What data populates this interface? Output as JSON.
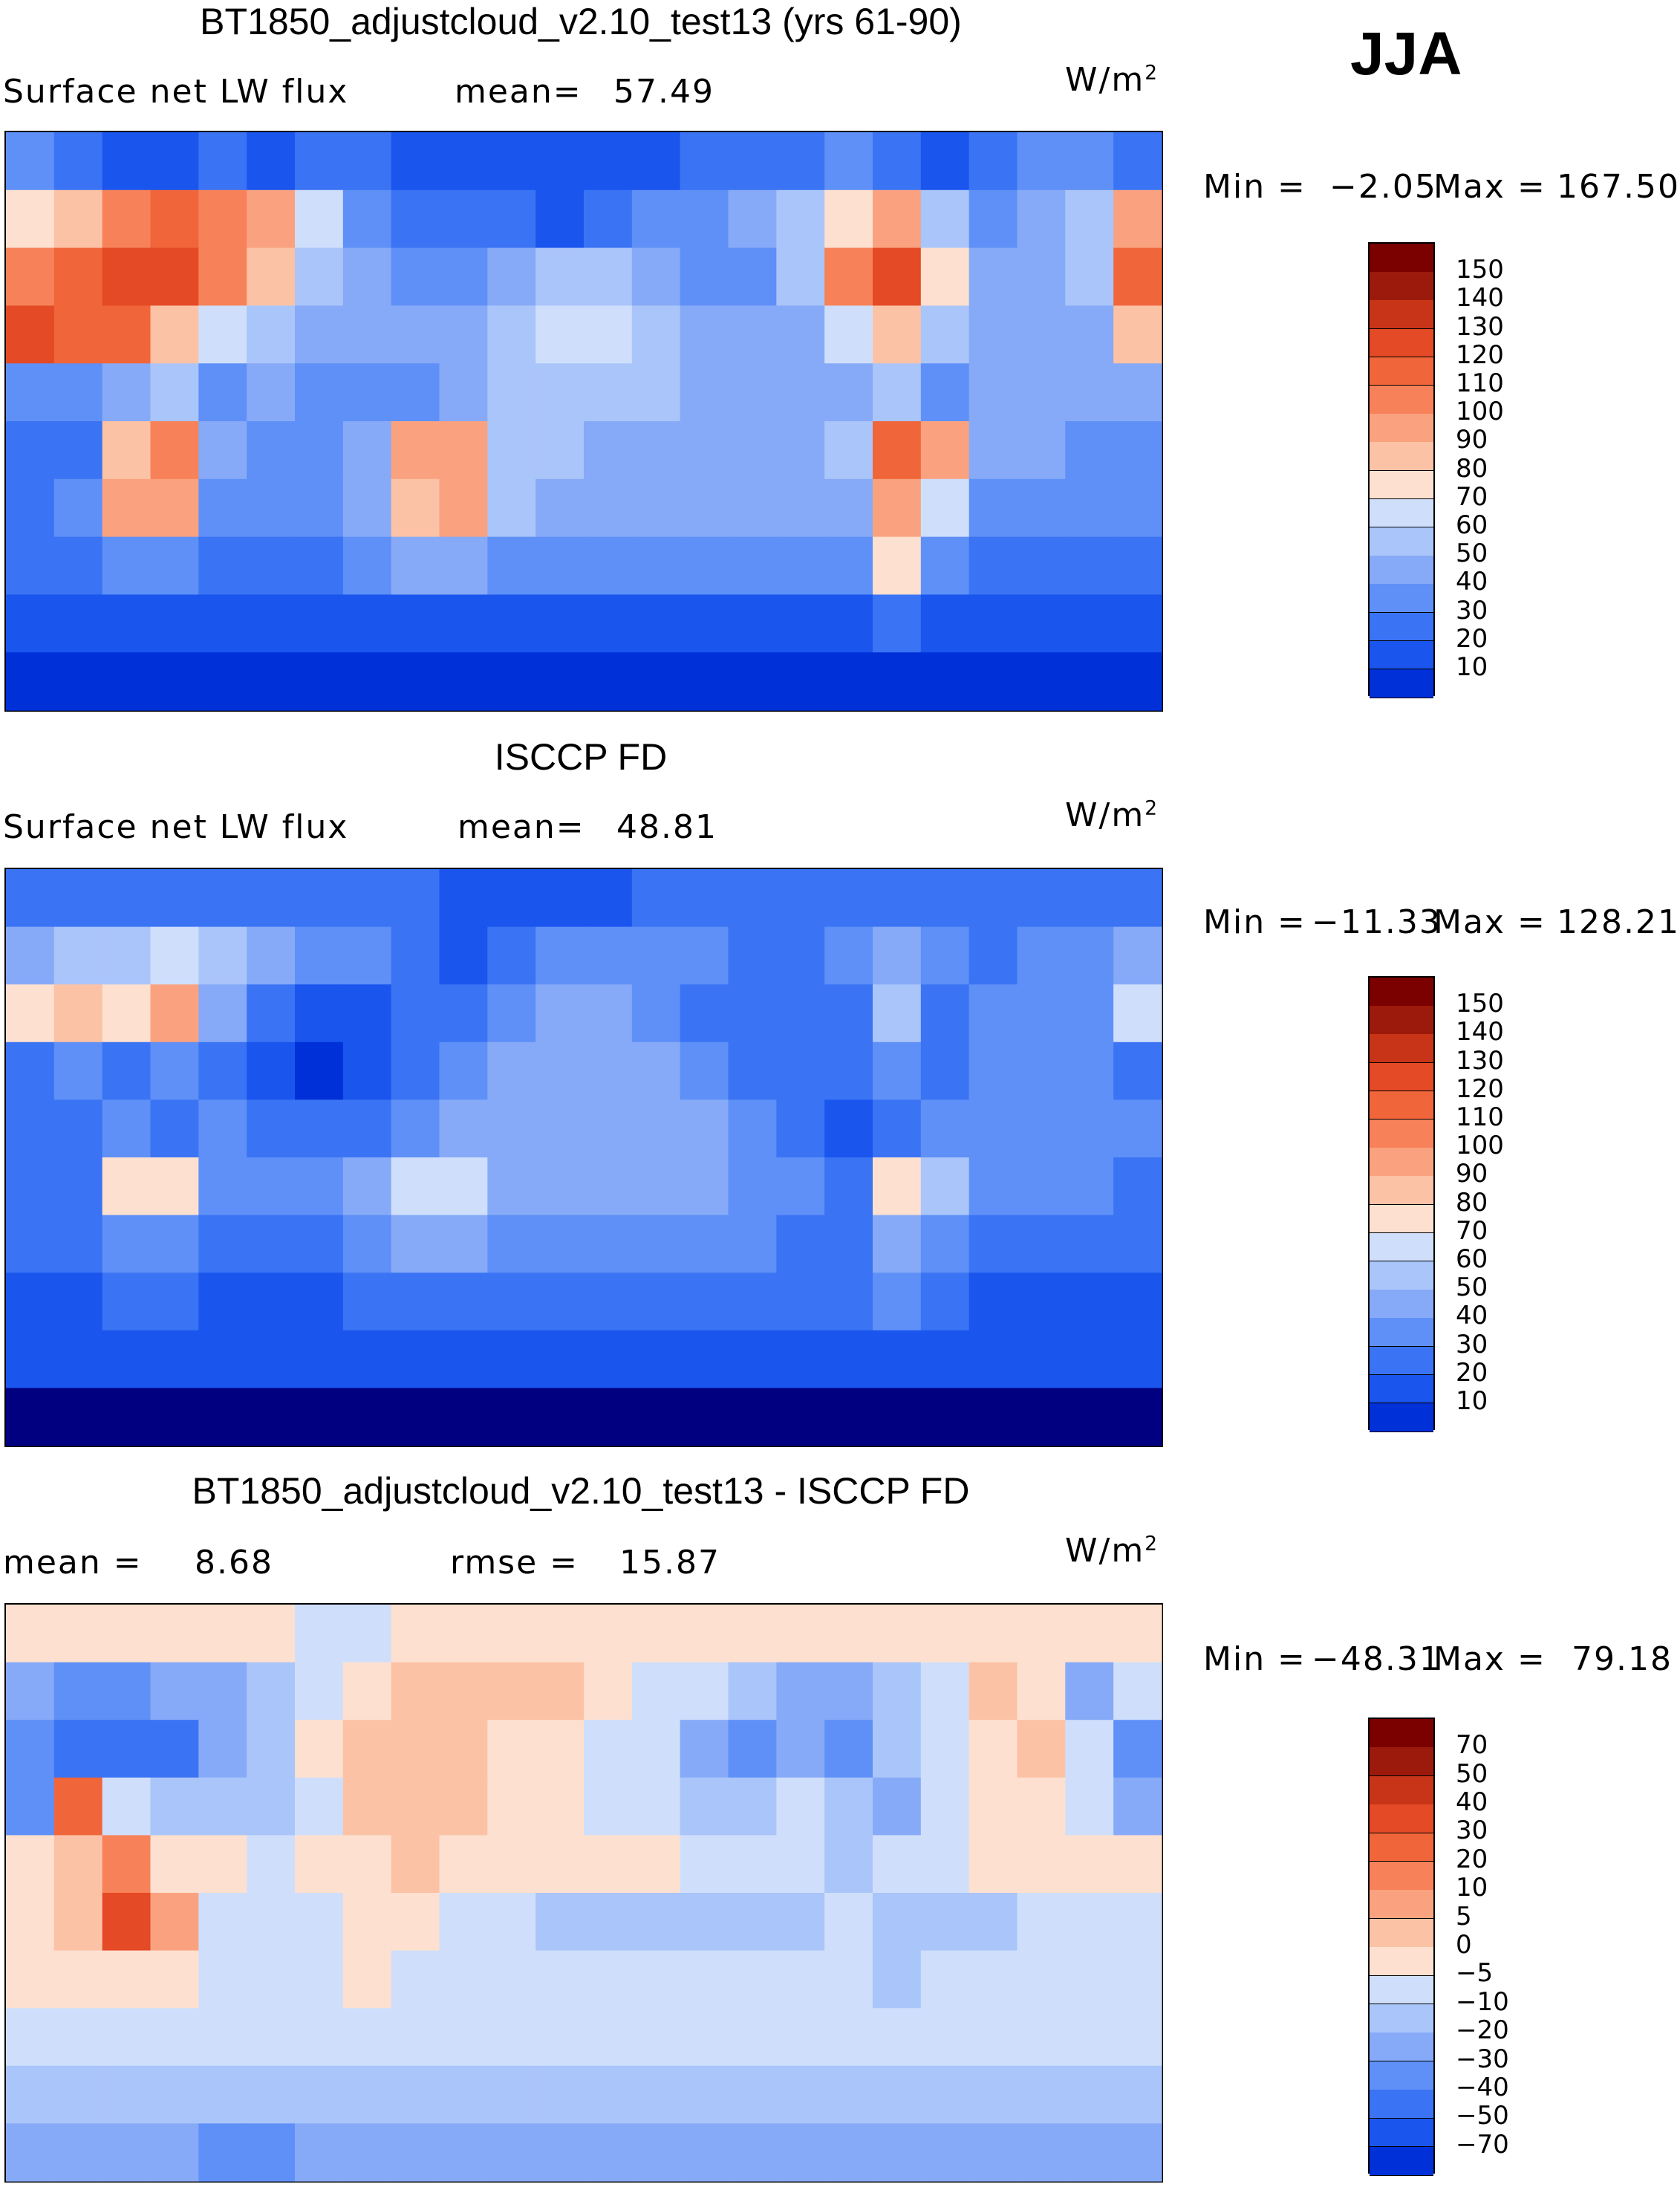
{
  "season": "JJA",
  "units": {
    "base": "W/m",
    "exp": "2"
  },
  "colors": {
    "blue_scale": [
      "#000080",
      "#0015b0",
      "#0030d8",
      "#1a55ee",
      "#3a74f4",
      "#5f90f7",
      "#86aaf7",
      "#aac5f9",
      "#cfdffb",
      "#ffffff"
    ],
    "red_scale": [
      "#fde0cf",
      "#fcc2a6",
      "#faa27f",
      "#f78259",
      "#f1653b",
      "#e34a25",
      "#c83418",
      "#9c1a0b",
      "#7b0000"
    ]
  },
  "chart_data": [
    {
      "type": "heatmap",
      "name": "model",
      "title": "BT1850_adjustcloud_v2.10_test13 (yrs 61-90)",
      "variable": "Surface net LW flux",
      "mean_label": "mean=",
      "mean": "57.49",
      "min_label": "Min =",
      "min": "−2.05",
      "max_label": "Max =",
      "max": "167.50",
      "levels": [
        "150",
        "140",
        "130",
        "120",
        "110",
        "100",
        "90",
        "80",
        "70",
        "60",
        "50",
        "40",
        "30",
        "20",
        "10"
      ],
      "level_colors": [
        "#7b0000",
        "#9c1a0b",
        "#c83418",
        "#e34a25",
        "#f1653b",
        "#f78259",
        "#faa27f",
        "#fcc2a6",
        "#fde0cf",
        "#cfdffb",
        "#aac5f9",
        "#86aaf7",
        "#5f90f7",
        "#3a74f4",
        "#1a55ee",
        "#0030d8",
        "#000080"
      ],
      "grid": [
        [
          4,
          3,
          2,
          2,
          3,
          2,
          3,
          3,
          2,
          2,
          2,
          2,
          2,
          2,
          3,
          3,
          3,
          4,
          3,
          2,
          3,
          4,
          4,
          3
        ],
        [
          8,
          9,
          11,
          12,
          11,
          10,
          7,
          4,
          3,
          3,
          3,
          2,
          3,
          4,
          4,
          5,
          6,
          8,
          10,
          6,
          4,
          5,
          6,
          10
        ],
        [
          11,
          12,
          13,
          13,
          11,
          9,
          6,
          5,
          4,
          4,
          5,
          6,
          6,
          5,
          4,
          4,
          6,
          11,
          13,
          8,
          5,
          5,
          6,
          12
        ],
        [
          13,
          12,
          12,
          9,
          7,
          6,
          5,
          5,
          5,
          5,
          6,
          7,
          7,
          6,
          5,
          5,
          5,
          7,
          9,
          6,
          5,
          5,
          5,
          9
        ],
        [
          4,
          4,
          5,
          6,
          4,
          5,
          4,
          4,
          4,
          5,
          6,
          6,
          6,
          6,
          5,
          5,
          5,
          5,
          6,
          4,
          5,
          5,
          5,
          5
        ],
        [
          3,
          3,
          9,
          11,
          5,
          4,
          4,
          5,
          10,
          10,
          6,
          6,
          5,
          5,
          5,
          5,
          5,
          6,
          12,
          10,
          5,
          5,
          4,
          4
        ],
        [
          3,
          4,
          10,
          10,
          4,
          4,
          4,
          5,
          9,
          10,
          6,
          5,
          5,
          5,
          5,
          5,
          5,
          5,
          10,
          7,
          4,
          4,
          4,
          4
        ],
        [
          3,
          3,
          4,
          4,
          3,
          3,
          3,
          4,
          5,
          5,
          4,
          4,
          4,
          4,
          4,
          4,
          4,
          4,
          8,
          4,
          3,
          3,
          3,
          3
        ],
        [
          2,
          2,
          2,
          2,
          2,
          2,
          2,
          2,
          2,
          2,
          2,
          2,
          2,
          2,
          2,
          2,
          2,
          2,
          3,
          2,
          2,
          2,
          2,
          2
        ],
        [
          1,
          1,
          1,
          1,
          1,
          1,
          1,
          1,
          1,
          1,
          1,
          1,
          1,
          1,
          1,
          1,
          1,
          1,
          1,
          1,
          1,
          1,
          1,
          1
        ]
      ]
    },
    {
      "type": "heatmap",
      "name": "obs",
      "title": "ISCCP FD",
      "variable": "Surface net LW flux",
      "mean_label": "mean=",
      "mean": "48.81",
      "min_label": "Min =",
      "min": "−11.33",
      "max_label": "Max =",
      "max": "128.21",
      "levels": [
        "150",
        "140",
        "130",
        "120",
        "110",
        "100",
        "90",
        "80",
        "70",
        "60",
        "50",
        "40",
        "30",
        "20",
        "10"
      ],
      "level_colors": [
        "#7b0000",
        "#9c1a0b",
        "#c83418",
        "#e34a25",
        "#f1653b",
        "#f78259",
        "#faa27f",
        "#fcc2a6",
        "#fde0cf",
        "#cfdffb",
        "#aac5f9",
        "#86aaf7",
        "#5f90f7",
        "#3a74f4",
        "#1a55ee",
        "#0030d8",
        "#000080"
      ],
      "grid": [
        [
          3,
          3,
          3,
          3,
          3,
          3,
          3,
          3,
          3,
          2,
          2,
          2,
          2,
          3,
          3,
          3,
          3,
          3,
          3,
          3,
          3,
          3,
          3,
          3
        ],
        [
          5,
          6,
          6,
          7,
          6,
          5,
          4,
          4,
          3,
          2,
          3,
          4,
          4,
          4,
          4,
          3,
          3,
          4,
          5,
          4,
          3,
          4,
          4,
          5
        ],
        [
          8,
          9,
          8,
          10,
          5,
          3,
          2,
          2,
          3,
          3,
          4,
          5,
          5,
          4,
          3,
          3,
          3,
          3,
          6,
          3,
          4,
          4,
          4,
          7
        ],
        [
          3,
          4,
          3,
          4,
          3,
          2,
          1,
          2,
          3,
          4,
          5,
          5,
          5,
          5,
          4,
          3,
          3,
          3,
          4,
          3,
          4,
          4,
          4,
          3
        ],
        [
          3,
          3,
          4,
          3,
          4,
          3,
          3,
          3,
          4,
          5,
          5,
          5,
          5,
          5,
          5,
          4,
          3,
          2,
          3,
          4,
          4,
          4,
          4,
          4
        ],
        [
          3,
          3,
          8,
          8,
          4,
          4,
          4,
          5,
          7,
          7,
          5,
          5,
          5,
          5,
          5,
          4,
          4,
          3,
          8,
          6,
          4,
          4,
          4,
          3
        ],
        [
          3,
          3,
          4,
          4,
          3,
          3,
          3,
          4,
          5,
          5,
          4,
          4,
          4,
          4,
          4,
          4,
          3,
          3,
          5,
          4,
          3,
          3,
          3,
          3
        ],
        [
          2,
          2,
          3,
          3,
          2,
          2,
          2,
          3,
          3,
          3,
          3,
          3,
          3,
          3,
          3,
          3,
          3,
          3,
          4,
          3,
          2,
          2,
          2,
          2
        ],
        [
          2,
          2,
          2,
          2,
          2,
          2,
          2,
          2,
          2,
          2,
          2,
          2,
          2,
          2,
          2,
          2,
          2,
          2,
          2,
          2,
          2,
          2,
          2,
          2
        ],
        [
          0,
          0,
          0,
          0,
          0,
          0,
          0,
          0,
          0,
          0,
          0,
          0,
          0,
          0,
          0,
          0,
          0,
          0,
          0,
          0,
          0,
          0,
          0,
          0
        ]
      ]
    },
    {
      "type": "heatmap",
      "name": "diff",
      "title": "BT1850_adjustcloud_v2.10_test13 - ISCCP FD",
      "mean_label": "mean =",
      "mean": "8.68",
      "rmse_label": "rmse =",
      "rmse": "15.87",
      "min_label": "Min =",
      "min": "−48.31",
      "max_label": "Max =",
      "max": "79.18",
      "levels": [
        "70",
        "50",
        "40",
        "30",
        "20",
        "10",
        "5",
        "0",
        "−5",
        "−10",
        "−20",
        "−30",
        "−40",
        "−50",
        "−70"
      ],
      "level_colors": [
        "#7b0000",
        "#9c1a0b",
        "#c83418",
        "#e34a25",
        "#f1653b",
        "#f78259",
        "#faa27f",
        "#fcc2a6",
        "#fde0cf",
        "#cfdffb",
        "#aac5f9",
        "#86aaf7",
        "#5f90f7",
        "#3a74f4",
        "#1a55ee",
        "#0030d8",
        "#000080"
      ],
      "grid": [
        [
          8,
          8,
          8,
          8,
          8,
          8,
          7,
          7,
          8,
          8,
          8,
          8,
          8,
          8,
          8,
          8,
          8,
          8,
          8,
          8,
          8,
          8,
          8,
          8
        ],
        [
          5,
          4,
          4,
          5,
          5,
          6,
          7,
          8,
          9,
          9,
          9,
          9,
          8,
          7,
          7,
          6,
          5,
          5,
          6,
          7,
          9,
          8,
          5,
          7
        ],
        [
          4,
          3,
          3,
          3,
          5,
          6,
          8,
          9,
          9,
          9,
          8,
          8,
          7,
          7,
          5,
          4,
          5,
          4,
          6,
          7,
          8,
          9,
          7,
          4
        ],
        [
          4,
          12,
          7,
          6,
          6,
          6,
          7,
          9,
          9,
          9,
          8,
          8,
          7,
          7,
          6,
          6,
          7,
          6,
          5,
          7,
          8,
          8,
          7,
          5
        ],
        [
          8,
          9,
          11,
          8,
          8,
          7,
          8,
          8,
          9,
          8,
          8,
          8,
          8,
          8,
          7,
          7,
          7,
          6,
          7,
          7,
          8,
          8,
          8,
          8
        ],
        [
          8,
          9,
          13,
          10,
          7,
          7,
          7,
          8,
          8,
          7,
          7,
          6,
          6,
          6,
          6,
          6,
          6,
          7,
          6,
          6,
          6,
          7,
          7,
          7
        ],
        [
          8,
          8,
          8,
          8,
          7,
          7,
          7,
          8,
          7,
          7,
          7,
          7,
          7,
          7,
          7,
          7,
          7,
          7,
          6,
          7,
          7,
          7,
          7,
          7
        ],
        [
          7,
          7,
          7,
          7,
          7,
          7,
          7,
          7,
          7,
          7,
          7,
          7,
          7,
          7,
          7,
          7,
          7,
          7,
          7,
          7,
          7,
          7,
          7,
          7
        ],
        [
          6,
          6,
          6,
          6,
          6,
          6,
          6,
          6,
          6,
          6,
          6,
          6,
          6,
          6,
          6,
          6,
          6,
          6,
          6,
          6,
          6,
          6,
          6,
          6
        ],
        [
          5,
          5,
          5,
          5,
          4,
          4,
          5,
          5,
          5,
          5,
          5,
          5,
          5,
          5,
          5,
          5,
          5,
          5,
          5,
          5,
          5,
          5,
          5,
          5
        ]
      ]
    }
  ]
}
